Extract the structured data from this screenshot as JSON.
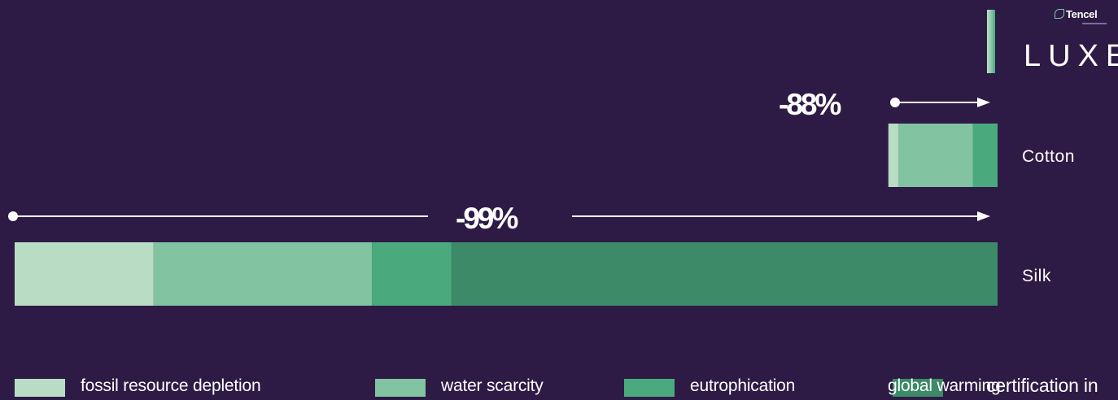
{
  "brand": {
    "tag": "Tencel",
    "name": "LUXE"
  },
  "chart_data": {
    "type": "bar",
    "orientation": "horizontal",
    "stacked": true,
    "categories": [
      "Cotton",
      "Silk"
    ],
    "series": [
      {
        "name": "fossil resource depletion",
        "values": [
          1,
          14
        ],
        "color": "#b9dcc5"
      },
      {
        "name": "water scarcity",
        "values": [
          7.5,
          22
        ],
        "color": "#82c3a2"
      },
      {
        "name": "eutrophication",
        "values": [
          2.5,
          8
        ],
        "color": "#4aaa7e"
      },
      {
        "name": "global warming",
        "values": [
          0,
          55
        ],
        "color": "#3d8a68"
      }
    ],
    "xlim": [
      0,
      99
    ],
    "annotations": [
      {
        "category": "Cotton",
        "text": "-88%"
      },
      {
        "category": "Silk",
        "text": "-99%"
      }
    ],
    "legend": {
      "position": "bottom",
      "entries": [
        {
          "label": "fossil resource depletion",
          "color": "#b9dcc5"
        },
        {
          "label": "water scarcity",
          "color": "#82c3a2"
        },
        {
          "label": "eutrophication",
          "color": "#4aaa7e"
        },
        {
          "label": "global warming",
          "color": "#3d8a68"
        },
        {
          "label": "certification in",
          "color": ""
        }
      ]
    },
    "grid": false,
    "title": "",
    "xlabel": "",
    "ylabel": ""
  }
}
